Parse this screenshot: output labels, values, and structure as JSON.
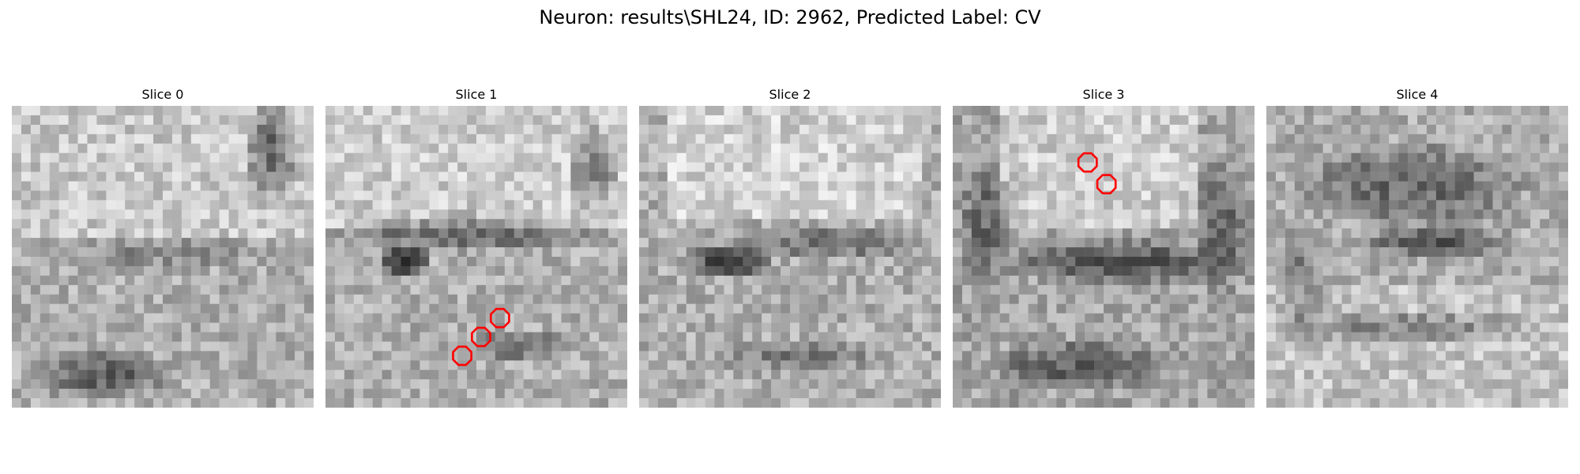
{
  "figure": {
    "title": "Neuron: results\\SHL24, ID: 2962, Predicted Label: CV"
  },
  "marker_color": "#ff0000",
  "slices": [
    {
      "title": "Slice 0",
      "markers": []
    },
    {
      "title": "Slice 1",
      "markers": []
    },
    {
      "title": "Slice 2",
      "markers": []
    },
    {
      "title": "Slice 3",
      "markers": []
    },
    {
      "title": "Slice 4",
      "markers": []
    }
  ]
}
